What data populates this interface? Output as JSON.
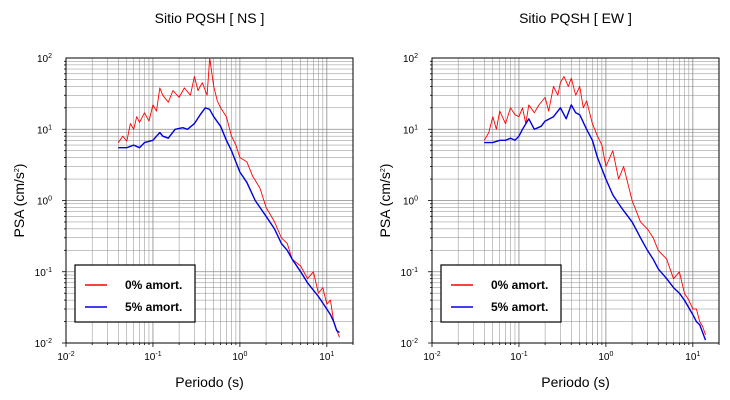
{
  "chart_data": [
    {
      "type": "line",
      "title": "Sitio PQSH [ NS ]",
      "xlabel": "Periodo (s)",
      "ylabel_main": "PSA (cm/s",
      "ylabel_sup": "2",
      "ylabel_close": ")",
      "xscale": "log",
      "yscale": "log",
      "xlim": [
        0.01,
        20
      ],
      "ylim": [
        0.01,
        100
      ],
      "grid": true,
      "legend_position": "bottom-left",
      "xticks": [
        {
          "base": "10",
          "exp": "-2"
        },
        {
          "base": "10",
          "exp": "-1"
        },
        {
          "base": "10",
          "exp": "0"
        },
        {
          "base": "10",
          "exp": "1"
        }
      ],
      "yticks": [
        {
          "base": "10",
          "exp": "-2"
        },
        {
          "base": "10",
          "exp": "-1"
        },
        {
          "base": "10",
          "exp": "0"
        },
        {
          "base": "10",
          "exp": "1"
        },
        {
          "base": "10",
          "exp": "2"
        }
      ],
      "series": [
        {
          "name": "0% amort.",
          "color": "#ff0000",
          "points": [
            [
              0.04,
              6.5
            ],
            [
              0.045,
              8.0
            ],
            [
              0.05,
              6.8
            ],
            [
              0.055,
              12.0
            ],
            [
              0.06,
              10.0
            ],
            [
              0.065,
              15.0
            ],
            [
              0.07,
              12.5
            ],
            [
              0.08,
              17.0
            ],
            [
              0.09,
              13.0
            ],
            [
              0.1,
              22.0
            ],
            [
              0.11,
              18.0
            ],
            [
              0.12,
              38.0
            ],
            [
              0.13,
              30.0
            ],
            [
              0.15,
              24.0
            ],
            [
              0.17,
              35.0
            ],
            [
              0.2,
              28.0
            ],
            [
              0.23,
              38.0
            ],
            [
              0.27,
              30.0
            ],
            [
              0.3,
              55.0
            ],
            [
              0.33,
              35.0
            ],
            [
              0.37,
              45.0
            ],
            [
              0.42,
              30.0
            ],
            [
              0.45,
              100.0
            ],
            [
              0.5,
              40.0
            ],
            [
              0.55,
              25.0
            ],
            [
              0.6,
              20.0
            ],
            [
              0.7,
              15.0
            ],
            [
              0.8,
              8.0
            ],
            [
              0.9,
              6.0
            ],
            [
              1.0,
              4.0
            ],
            [
              1.2,
              3.5
            ],
            [
              1.4,
              2.2
            ],
            [
              1.7,
              1.5
            ],
            [
              2.0,
              0.8
            ],
            [
              2.5,
              0.5
            ],
            [
              3.0,
              0.3
            ],
            [
              3.5,
              0.25
            ],
            [
              4.0,
              0.15
            ],
            [
              5.0,
              0.12
            ],
            [
              6.0,
              0.08
            ],
            [
              7.0,
              0.1
            ],
            [
              8.0,
              0.05
            ],
            [
              9.0,
              0.06
            ],
            [
              10.0,
              0.035
            ],
            [
              11.0,
              0.04
            ],
            [
              12.0,
              0.02
            ],
            [
              13.0,
              0.015
            ],
            [
              14.0,
              0.012
            ]
          ]
        },
        {
          "name": "5% amort.",
          "color": "#0000dd",
          "points": [
            [
              0.04,
              5.5
            ],
            [
              0.05,
              5.5
            ],
            [
              0.06,
              6.0
            ],
            [
              0.07,
              5.5
            ],
            [
              0.08,
              6.5
            ],
            [
              0.1,
              7.0
            ],
            [
              0.12,
              9.0
            ],
            [
              0.13,
              8.0
            ],
            [
              0.15,
              7.5
            ],
            [
              0.18,
              10.0
            ],
            [
              0.22,
              10.5
            ],
            [
              0.25,
              10.0
            ],
            [
              0.3,
              12.0
            ],
            [
              0.35,
              16.0
            ],
            [
              0.4,
              20.0
            ],
            [
              0.45,
              19.0
            ],
            [
              0.5,
              15.0
            ],
            [
              0.6,
              11.0
            ],
            [
              0.7,
              7.0
            ],
            [
              0.8,
              5.0
            ],
            [
              1.0,
              2.5
            ],
            [
              1.2,
              1.8
            ],
            [
              1.5,
              1.0
            ],
            [
              2.0,
              0.6
            ],
            [
              2.5,
              0.4
            ],
            [
              3.0,
              0.25
            ],
            [
              3.5,
              0.2
            ],
            [
              4.0,
              0.15
            ],
            [
              5.0,
              0.1
            ],
            [
              6.0,
              0.07
            ],
            [
              7.0,
              0.055
            ],
            [
              8.0,
              0.045
            ],
            [
              10.0,
              0.03
            ],
            [
              11.0,
              0.025
            ],
            [
              12.0,
              0.02
            ],
            [
              13.0,
              0.015
            ],
            [
              14.0,
              0.014
            ]
          ]
        }
      ]
    },
    {
      "type": "line",
      "title": "Sitio PQSH [ EW ]",
      "xlabel": "Periodo (s)",
      "ylabel_main": "PSA (cm/s",
      "ylabel_sup": "2",
      "ylabel_close": ")",
      "xscale": "log",
      "yscale": "log",
      "xlim": [
        0.01,
        20
      ],
      "ylim": [
        0.01,
        100
      ],
      "grid": true,
      "legend_position": "bottom-left",
      "xticks": [
        {
          "base": "10",
          "exp": "-2"
        },
        {
          "base": "10",
          "exp": "-1"
        },
        {
          "base": "10",
          "exp": "0"
        },
        {
          "base": "10",
          "exp": "1"
        }
      ],
      "yticks": [
        {
          "base": "10",
          "exp": "-2"
        },
        {
          "base": "10",
          "exp": "-1"
        },
        {
          "base": "10",
          "exp": "0"
        },
        {
          "base": "10",
          "exp": "1"
        },
        {
          "base": "10",
          "exp": "2"
        }
      ],
      "series": [
        {
          "name": "0% amort.",
          "color": "#ff0000",
          "points": [
            [
              0.04,
              7.0
            ],
            [
              0.045,
              9.0
            ],
            [
              0.05,
              15.0
            ],
            [
              0.055,
              10.0
            ],
            [
              0.06,
              18.0
            ],
            [
              0.07,
              12.0
            ],
            [
              0.08,
              20.0
            ],
            [
              0.09,
              16.0
            ],
            [
              0.1,
              15.0
            ],
            [
              0.11,
              20.0
            ],
            [
              0.12,
              12.0
            ],
            [
              0.13,
              22.0
            ],
            [
              0.15,
              17.0
            ],
            [
              0.17,
              22.0
            ],
            [
              0.2,
              28.0
            ],
            [
              0.22,
              18.0
            ],
            [
              0.25,
              40.0
            ],
            [
              0.28,
              30.0
            ],
            [
              0.3,
              45.0
            ],
            [
              0.33,
              55.0
            ],
            [
              0.37,
              40.0
            ],
            [
              0.4,
              52.0
            ],
            [
              0.45,
              30.0
            ],
            [
              0.5,
              40.0
            ],
            [
              0.55,
              20.0
            ],
            [
              0.6,
              25.0
            ],
            [
              0.7,
              12.0
            ],
            [
              0.8,
              8.0
            ],
            [
              0.9,
              6.0
            ],
            [
              1.0,
              3.0
            ],
            [
              1.2,
              5.0
            ],
            [
              1.4,
              2.0
            ],
            [
              1.6,
              3.0
            ],
            [
              2.0,
              1.0
            ],
            [
              2.5,
              0.5
            ],
            [
              3.0,
              0.4
            ],
            [
              3.5,
              0.3
            ],
            [
              4.0,
              0.2
            ],
            [
              5.0,
              0.15
            ],
            [
              6.0,
              0.08
            ],
            [
              7.0,
              0.1
            ],
            [
              8.0,
              0.05
            ],
            [
              9.0,
              0.04
            ],
            [
              10.0,
              0.03
            ],
            [
              11.0,
              0.03
            ],
            [
              12.0,
              0.02
            ],
            [
              13.0,
              0.017
            ],
            [
              14.0,
              0.013
            ]
          ]
        },
        {
          "name": "5% amort.",
          "color": "#0000dd",
          "points": [
            [
              0.04,
              6.5
            ],
            [
              0.05,
              6.5
            ],
            [
              0.06,
              7.0
            ],
            [
              0.07,
              7.0
            ],
            [
              0.08,
              7.5
            ],
            [
              0.09,
              7.0
            ],
            [
              0.1,
              8.0
            ],
            [
              0.11,
              10.0
            ],
            [
              0.13,
              14.0
            ],
            [
              0.15,
              10.0
            ],
            [
              0.18,
              11.0
            ],
            [
              0.2,
              13.0
            ],
            [
              0.25,
              15.0
            ],
            [
              0.3,
              20.0
            ],
            [
              0.35,
              14.0
            ],
            [
              0.4,
              22.0
            ],
            [
              0.45,
              17.0
            ],
            [
              0.5,
              16.0
            ],
            [
              0.6,
              10.0
            ],
            [
              0.7,
              7.0
            ],
            [
              0.8,
              4.0
            ],
            [
              1.0,
              2.0
            ],
            [
              1.2,
              1.2
            ],
            [
              1.5,
              0.8
            ],
            [
              2.0,
              0.5
            ],
            [
              2.5,
              0.3
            ],
            [
              3.0,
              0.2
            ],
            [
              3.5,
              0.15
            ],
            [
              4.0,
              0.11
            ],
            [
              5.0,
              0.08
            ],
            [
              6.0,
              0.06
            ],
            [
              7.0,
              0.05
            ],
            [
              8.0,
              0.04
            ],
            [
              10.0,
              0.025
            ],
            [
              11.0,
              0.02
            ],
            [
              12.0,
              0.018
            ],
            [
              13.0,
              0.014
            ],
            [
              14.0,
              0.011
            ]
          ]
        }
      ]
    }
  ]
}
